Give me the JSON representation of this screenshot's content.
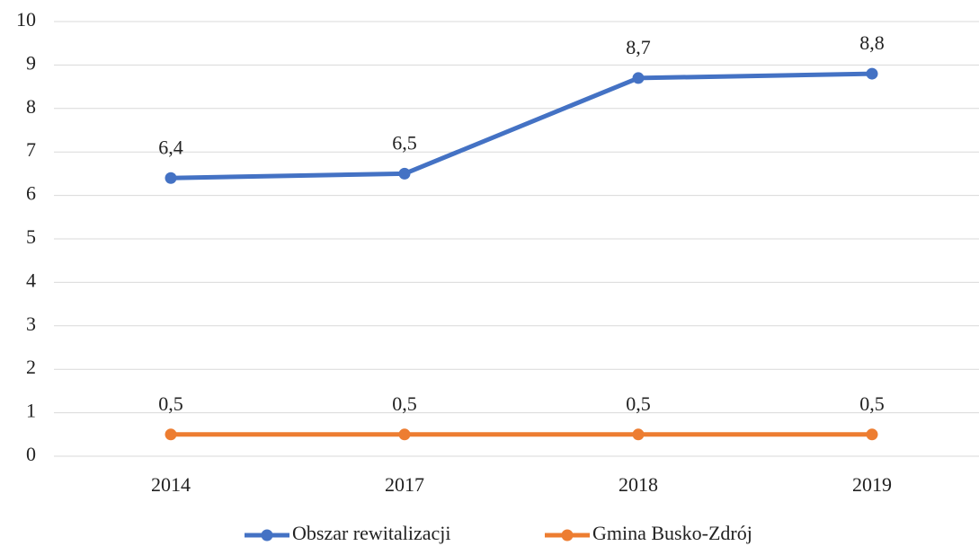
{
  "chart_data": {
    "type": "line",
    "categories": [
      "2014",
      "2017",
      "2018",
      "2019"
    ],
    "series": [
      {
        "name": "Obszar rewitalizacji",
        "color": "#4472c4",
        "values": [
          6.4,
          6.5,
          8.7,
          8.8
        ],
        "value_labels": [
          "6,4",
          "6,5",
          "8,7",
          "8,8"
        ]
      },
      {
        "name": "Gmina Busko-Zdrój",
        "color": "#ed7d31",
        "values": [
          0.5,
          0.5,
          0.5,
          0.5
        ],
        "value_labels": [
          "0,5",
          "0,5",
          "0,5",
          "0,5"
        ]
      }
    ],
    "ylim": [
      0,
      10
    ],
    "yticks": [
      0,
      1,
      2,
      3,
      4,
      5,
      6,
      7,
      8,
      9,
      10
    ],
    "grid": true,
    "legend": "bottom"
  }
}
